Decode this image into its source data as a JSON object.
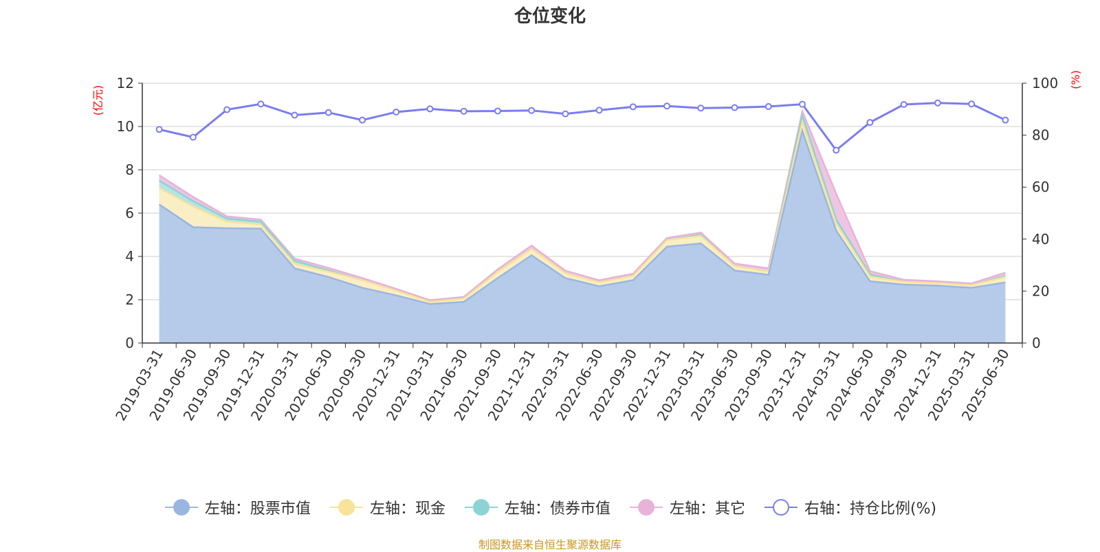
{
  "colors": {
    "stock": "#9ab6e0",
    "stock_fill": "#b6cbea",
    "cash": "#f7e39a",
    "cash_fill": "#faefc4",
    "bond": "#8ed3d3",
    "bond_fill": "#b8e3e3",
    "other": "#e7b3d8",
    "other_fill": "#eec6e3",
    "ratio": "#7a7cf0",
    "axis_unit": "#ff0000",
    "grid": "#cccccc",
    "source": "#c8961e"
  },
  "source_text": "制图数据来自恒生聚源数据库",
  "chart_data": {
    "type": "area",
    "title": "仓位变化",
    "left_axis": {
      "unit": "(亿元)",
      "ylim": [
        0,
        12
      ],
      "ticks": [
        0,
        2,
        4,
        6,
        8,
        10,
        12
      ]
    },
    "right_axis": {
      "unit": "(%)",
      "ylim": [
        0,
        100
      ],
      "ticks": [
        0,
        20,
        40,
        60,
        80,
        100
      ]
    },
    "grid": true,
    "legend_position": "bottom",
    "x": [
      "2019-03-31",
      "2019-06-30",
      "2019-09-30",
      "2019-12-31",
      "2020-03-31",
      "2020-06-30",
      "2020-09-30",
      "2020-12-31",
      "2021-03-31",
      "2021-06-30",
      "2021-09-30",
      "2021-12-31",
      "2022-03-31",
      "2022-06-30",
      "2022-09-30",
      "2022-12-31",
      "2023-03-31",
      "2023-06-30",
      "2023-09-30",
      "2023-12-31",
      "2024-03-31",
      "2024-06-30",
      "2024-09-30",
      "2024-12-31",
      "2025-03-31",
      "2025-06-30"
    ],
    "series": [
      {
        "name": "左轴：股票市值",
        "axis": "left",
        "stacked": true,
        "icon": "filled-circle",
        "values": [
          6.4,
          5.35,
          5.3,
          5.28,
          3.45,
          3.05,
          2.55,
          2.2,
          1.8,
          1.9,
          3.0,
          4.05,
          3.0,
          2.62,
          2.9,
          4.45,
          4.6,
          3.35,
          3.15,
          9.8,
          5.2,
          2.85,
          2.7,
          2.65,
          2.55,
          2.8
        ]
      },
      {
        "name": "左轴：现金",
        "axis": "left",
        "stacked": true,
        "icon": "filled-circle",
        "values": [
          0.75,
          0.95,
          0.3,
          0.2,
          0.2,
          0.25,
          0.35,
          0.22,
          0.1,
          0.15,
          0.28,
          0.3,
          0.22,
          0.18,
          0.2,
          0.3,
          0.35,
          0.2,
          0.15,
          0.4,
          0.3,
          0.22,
          0.12,
          0.12,
          0.12,
          0.25
        ]
      },
      {
        "name": "左轴：债券市值",
        "axis": "left",
        "stacked": true,
        "icon": "filled-circle",
        "values": [
          0.35,
          0.25,
          0.15,
          0.12,
          0.15,
          0.05,
          0.0,
          0.0,
          0.0,
          0.0,
          0.0,
          0.0,
          0.0,
          0.0,
          0.0,
          0.0,
          0.05,
          0.0,
          0.0,
          0.3,
          0.2,
          0.1,
          0.0,
          0.0,
          0.0,
          0.05
        ]
      },
      {
        "name": "左轴：其它",
        "axis": "left",
        "stacked": true,
        "icon": "filled-circle",
        "values": [
          0.25,
          0.2,
          0.1,
          0.1,
          0.1,
          0.12,
          0.1,
          0.08,
          0.08,
          0.08,
          0.12,
          0.15,
          0.12,
          0.1,
          0.1,
          0.1,
          0.1,
          0.12,
          0.15,
          0.2,
          1.2,
          0.15,
          0.1,
          0.08,
          0.08,
          0.15
        ]
      },
      {
        "name": "右轴：持仓比例(%)",
        "axis": "right",
        "stacked": false,
        "icon": "hollow-circle",
        "values": [
          82.2,
          79.2,
          89.8,
          92.0,
          87.7,
          88.7,
          85.8,
          88.9,
          90.1,
          89.2,
          89.3,
          89.5,
          88.2,
          89.6,
          90.9,
          91.2,
          90.4,
          90.6,
          91.0,
          91.9,
          74.2,
          84.9,
          91.8,
          92.4,
          92.0,
          85.8
        ]
      }
    ]
  }
}
